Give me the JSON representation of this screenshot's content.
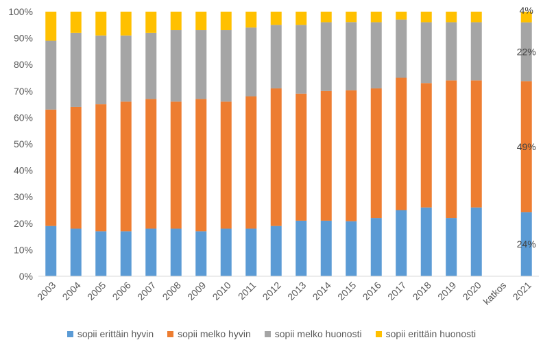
{
  "chart_data": {
    "type": "bar",
    "stacked": true,
    "percent_stacked": true,
    "categories": [
      "2003",
      "2004",
      "2005",
      "2006",
      "2007",
      "2008",
      "2009",
      "2010",
      "2011",
      "2012",
      "2013",
      "2014",
      "2015",
      "2016",
      "2017",
      "2018",
      "2019",
      "2020",
      "katkos",
      "2021"
    ],
    "series": [
      {
        "name": "sopii erittäin hyvin",
        "color": "#5b9bd5",
        "values": [
          19,
          18,
          17,
          17,
          18,
          18,
          17,
          18,
          18,
          19,
          21,
          21,
          21,
          22,
          25,
          26,
          22,
          26,
          null,
          24
        ]
      },
      {
        "name": "sopii melko hyvin",
        "color": "#ed7d31",
        "values": [
          44,
          46,
          48,
          49,
          49,
          48,
          50,
          48,
          50,
          52,
          48,
          49,
          50,
          49,
          50,
          47,
          52,
          48,
          null,
          49
        ]
      },
      {
        "name": "sopii melko huonosti",
        "color": "#a5a5a5",
        "values": [
          26,
          28,
          26,
          25,
          25,
          27,
          26,
          27,
          26,
          24,
          26,
          26,
          26,
          25,
          22,
          23,
          22,
          22,
          null,
          22
        ]
      },
      {
        "name": "sopii erittäin huonosti",
        "color": "#ffc000",
        "values": [
          11,
          8,
          9,
          9,
          8,
          7,
          7,
          7,
          6,
          5,
          5,
          4,
          4,
          4,
          3,
          4,
          4,
          4,
          null,
          4
        ]
      }
    ],
    "data_labels": [
      {
        "category": "2021",
        "series": "sopii erittäin hyvin",
        "text": "24%"
      },
      {
        "category": "2021",
        "series": "sopii melko hyvin",
        "text": "49%"
      },
      {
        "category": "2021",
        "series": "sopii melko huonosti",
        "text": "22%"
      },
      {
        "category": "2021",
        "series": "sopii erittäin huonosti",
        "text": "4%"
      }
    ],
    "y_ticks": [
      "0%",
      "10%",
      "20%",
      "30%",
      "40%",
      "50%",
      "60%",
      "70%",
      "80%",
      "90%",
      "100%"
    ],
    "ylim": [
      0,
      100
    ],
    "grid": false,
    "legend_position": "bottom"
  }
}
